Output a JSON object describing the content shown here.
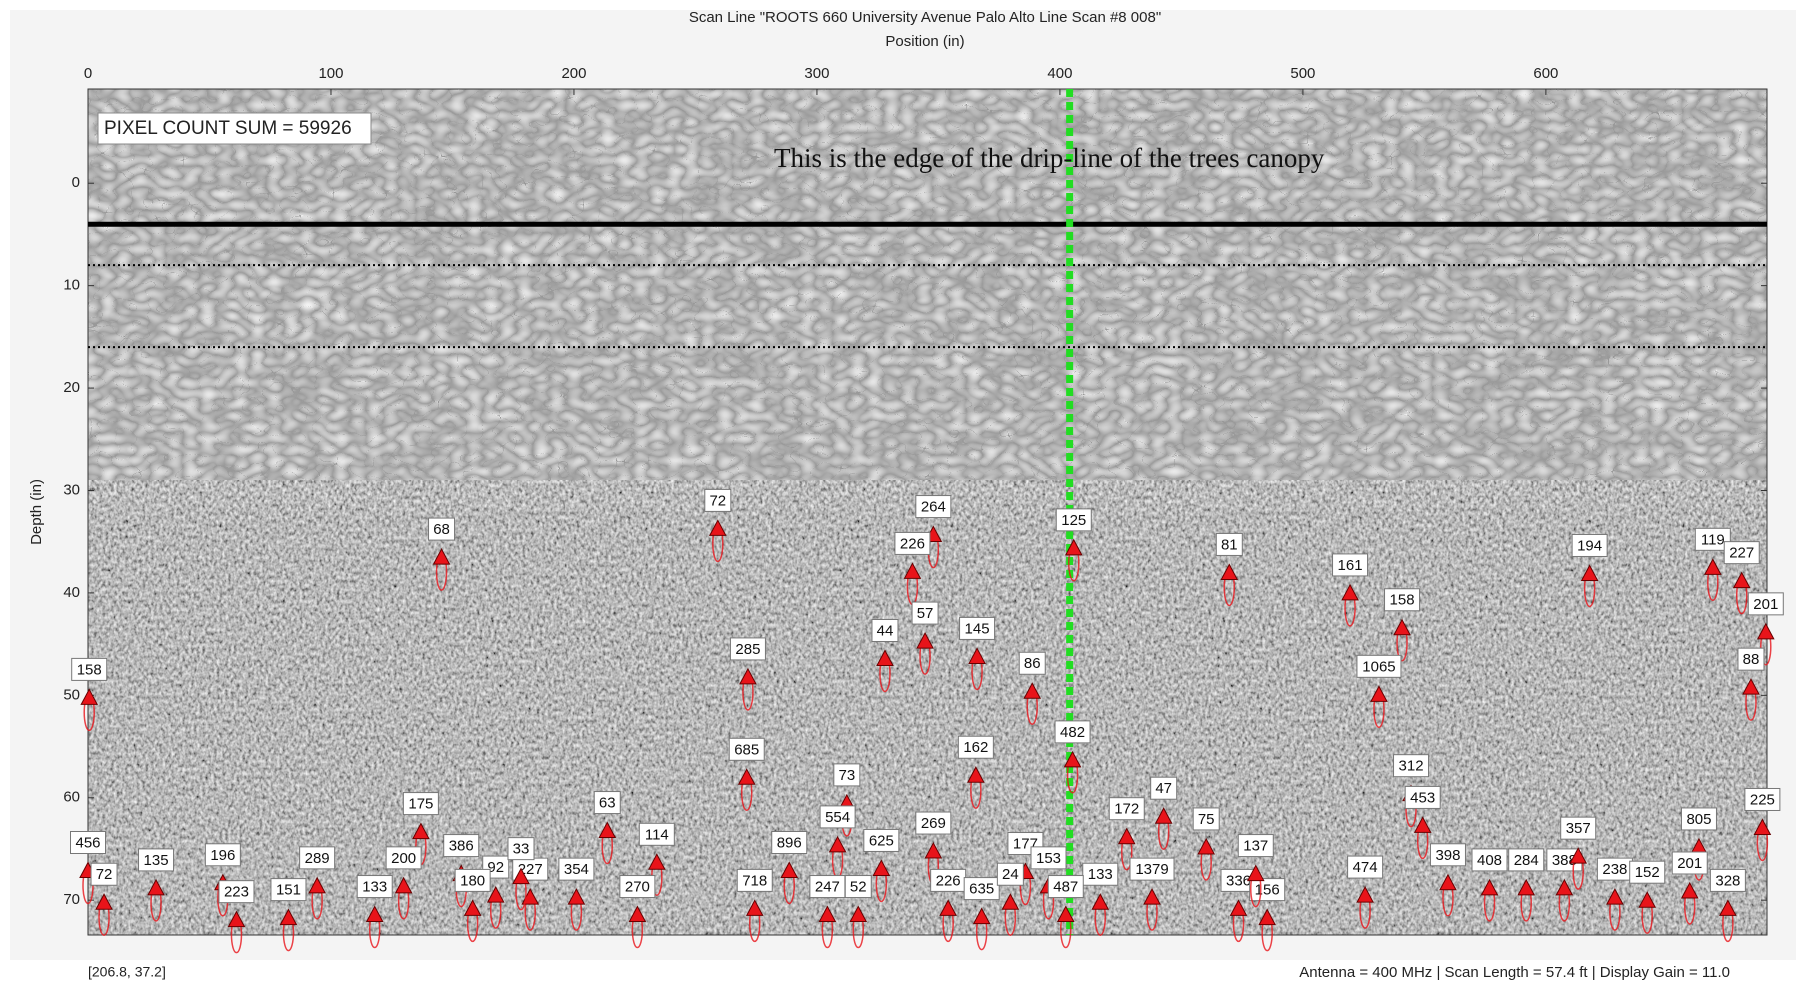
{
  "chart_data": {
    "type": "scatter",
    "title": "Scan Line \"ROOTS 660 University Avenue Palo Alto  Line Scan #8  008\"",
    "xlabel": "Position (in)",
    "ylabel": "Depth (in)",
    "xlim": [
      0,
      691
    ],
    "xticks": [
      0,
      100,
      200,
      300,
      400,
      500,
      600
    ],
    "ylim": [
      73.4,
      -9.2
    ],
    "yticks": [
      0,
      10,
      20,
      30,
      40,
      50,
      60,
      70
    ],
    "marker_color": "#e8141a",
    "hlines": [
      {
        "depth": 4,
        "style": "solid"
      },
      {
        "depth": 8,
        "style": "dotted"
      },
      {
        "depth": 16,
        "style": "dotted"
      }
    ],
    "vline": {
      "x": 404,
      "color": "#22dd22"
    },
    "annotations": {
      "pixel_count": "PIXEL COUNT SUM = 59926",
      "dripline": "This is the edge of the drip-line of the trees canopy",
      "cursor": "[206.8, 37.2]",
      "settings": "Antenna = 400 MHz | Scan Length = 57.4 ft | Display Gain = 11.0"
    },
    "points": [
      {
        "x": 145.5,
        "depth": 36.6,
        "label": 68
      },
      {
        "x": 259.2,
        "depth": 33.8,
        "label": 72
      },
      {
        "x": 347.9,
        "depth": 34.4,
        "label": 264
      },
      {
        "x": 339.3,
        "depth": 38.0,
        "label": 226
      },
      {
        "x": 405.7,
        "depth": 35.7,
        "label": 125
      },
      {
        "x": 469.7,
        "depth": 38.1,
        "label": 81
      },
      {
        "x": 519.4,
        "depth": 40.1,
        "label": 161
      },
      {
        "x": 618.0,
        "depth": 38.2,
        "label": 194
      },
      {
        "x": 668.7,
        "depth": 37.6,
        "label": 119
      },
      {
        "x": 680.6,
        "depth": 38.9,
        "label": 227
      },
      {
        "x": 690.5,
        "depth": 43.9,
        "label": 201
      },
      {
        "x": 540.8,
        "depth": 43.5,
        "label": 158
      },
      {
        "x": 271.6,
        "depth": 48.3,
        "label": 285
      },
      {
        "x": 328.0,
        "depth": 46.5,
        "label": 44
      },
      {
        "x": 344.5,
        "depth": 44.8,
        "label": 57
      },
      {
        "x": 365.9,
        "depth": 46.3,
        "label": 145
      },
      {
        "x": 388.6,
        "depth": 49.7,
        "label": 86
      },
      {
        "x": 0.5,
        "depth": 50.3,
        "label": 158
      },
      {
        "x": 531.3,
        "depth": 50.0,
        "label": 1065
      },
      {
        "x": 684.4,
        "depth": 49.3,
        "label": 88
      },
      {
        "x": 271.1,
        "depth": 58.1,
        "label": 685
      },
      {
        "x": 365.4,
        "depth": 57.9,
        "label": 162
      },
      {
        "x": 405.2,
        "depth": 56.4,
        "label": 482
      },
      {
        "x": 544.5,
        "depth": 59.7,
        "label": 312
      },
      {
        "x": 549.3,
        "depth": 62.8,
        "label": 453
      },
      {
        "x": 460.2,
        "depth": 64.9,
        "label": 75
      },
      {
        "x": 442.7,
        "depth": 61.9,
        "label": 47
      },
      {
        "x": 427.5,
        "depth": 63.9,
        "label": 172
      },
      {
        "x": 137.0,
        "depth": 63.4,
        "label": 175
      },
      {
        "x": 213.7,
        "depth": 63.3,
        "label": 63
      },
      {
        "x": 312.3,
        "depth": 60.6,
        "label": 73
      },
      {
        "x": 308.5,
        "depth": 64.7,
        "label": 554
      },
      {
        "x": 326.5,
        "depth": 67.0,
        "label": 625
      },
      {
        "x": 347.9,
        "depth": 65.3,
        "label": 269
      },
      {
        "x": 385.8,
        "depth": 67.3,
        "label": 177
      },
      {
        "x": 395.3,
        "depth": 68.7,
        "label": 153
      },
      {
        "x": 416.6,
        "depth": 70.3,
        "label": 133
      },
      {
        "x": 402.4,
        "depth": 71.5,
        "label": 487
      },
      {
        "x": 437.9,
        "depth": 69.8,
        "label": 1379
      },
      {
        "x": 473.5,
        "depth": 70.9,
        "label": 336
      },
      {
        "x": 485.3,
        "depth": 71.8,
        "label": 156
      },
      {
        "x": 480.6,
        "depth": 67.5,
        "label": 137
      },
      {
        "x": 525.6,
        "depth": 69.6,
        "label": 474
      },
      {
        "x": 559.7,
        "depth": 68.4,
        "label": 398
      },
      {
        "x": 576.8,
        "depth": 68.9,
        "label": 408
      },
      {
        "x": 591.9,
        "depth": 68.9,
        "label": 284
      },
      {
        "x": 607.6,
        "depth": 68.9,
        "label": 388
      },
      {
        "x": 613.3,
        "depth": 65.8,
        "label": 357
      },
      {
        "x": 663.0,
        "depth": 64.9,
        "label": 805
      },
      {
        "x": 674.9,
        "depth": 70.9,
        "label": 328
      },
      {
        "x": 659.2,
        "depth": 69.2,
        "label": 201
      },
      {
        "x": 94.3,
        "depth": 68.7,
        "label": 289
      },
      {
        "x": 129.9,
        "depth": 68.7,
        "label": 200
      },
      {
        "x": 153.6,
        "depth": 67.5,
        "label": 386
      },
      {
        "x": 28.0,
        "depth": 68.9,
        "label": 135
      },
      {
        "x": 55.5,
        "depth": 68.4,
        "label": 196
      },
      {
        "x": 61.1,
        "depth": 72.0,
        "label": 223
      },
      {
        "x": 82.5,
        "depth": 71.8,
        "label": 151
      },
      {
        "x": 118.0,
        "depth": 71.5,
        "label": 133
      },
      {
        "x": 234.1,
        "depth": 66.4,
        "label": 114
      },
      {
        "x": 288.6,
        "depth": 67.2,
        "label": 896
      },
      {
        "x": 274.4,
        "depth": 70.9,
        "label": 718
      },
      {
        "x": 304.3,
        "depth": 71.5,
        "label": 247
      },
      {
        "x": 317.0,
        "depth": 71.5,
        "label": 52
      },
      {
        "x": 354.0,
        "depth": 70.9,
        "label": 226
      },
      {
        "x": 367.8,
        "depth": 71.7,
        "label": 635
      },
      {
        "x": 226.1,
        "depth": 71.5,
        "label": 270
      },
      {
        "x": 201.0,
        "depth": 69.8,
        "label": 354
      },
      {
        "x": 182.0,
        "depth": 69.8,
        "label": 227
      },
      {
        "x": 167.8,
        "depth": 69.6,
        "label": 92
      },
      {
        "x": 0.0,
        "depth": 67.2,
        "label": 456
      },
      {
        "x": 6.6,
        "depth": 70.3,
        "label": 72
      },
      {
        "x": 158.3,
        "depth": 70.9,
        "label": 180
      },
      {
        "x": 178.2,
        "depth": 67.8,
        "label": 33
      },
      {
        "x": 628.4,
        "depth": 69.8,
        "label": 238
      },
      {
        "x": 641.7,
        "depth": 70.1,
        "label": 152
      },
      {
        "x": 379.6,
        "depth": 70.3,
        "label": 24
      },
      {
        "x": 689.1,
        "depth": 63.0,
        "label": 225
      }
    ]
  }
}
